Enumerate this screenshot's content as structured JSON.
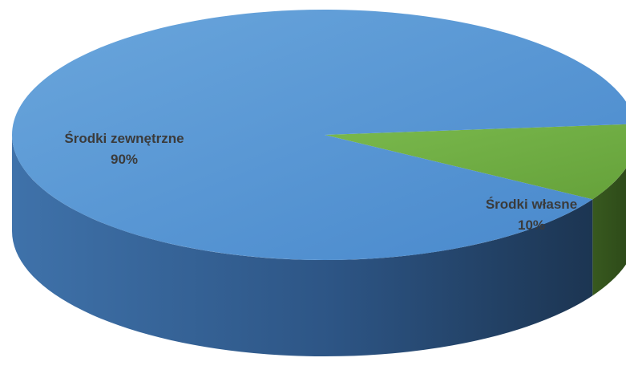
{
  "chart_data": {
    "type": "pie",
    "style": "3d",
    "slices": [
      {
        "label": "Środki zewnętrzne",
        "value": 90,
        "value_label": "90%",
        "color": "#4f8fcf"
      },
      {
        "label": "Środki własne",
        "value": 10,
        "value_label": "10%",
        "color": "#72ad44"
      }
    ]
  }
}
